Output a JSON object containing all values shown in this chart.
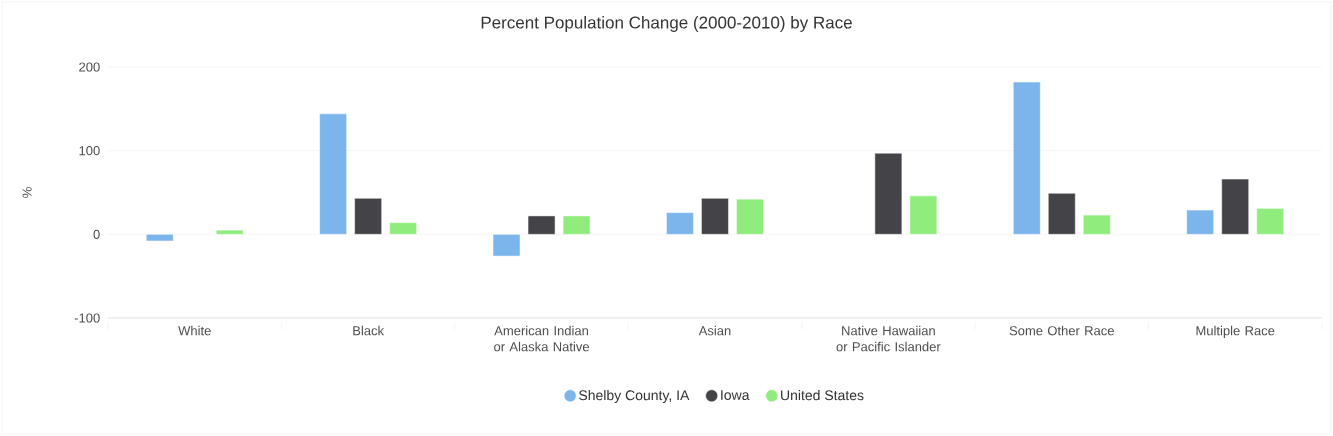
{
  "chart_data": {
    "type": "bar",
    "title": "Percent Population Change (2000-2010) by Race",
    "ylabel": "%",
    "categories": [
      "White",
      "Black",
      "American Indian or Alaska Native",
      "Asian",
      "Native Hawaiian or Pacific Islander",
      "Some Other Race",
      "Multiple Race"
    ],
    "series": [
      {
        "name": "Shelby County, IA",
        "color": "#7cb5ec",
        "values": [
          -8,
          144,
          -26,
          26,
          null,
          182,
          29
        ]
      },
      {
        "name": "Iowa",
        "color": "#434348",
        "values": [
          null,
          43,
          22,
          43,
          97,
          49,
          66
        ]
      },
      {
        "name": "United States",
        "color": "#90ed7d",
        "values": [
          5,
          14,
          22,
          42,
          46,
          23,
          31
        ]
      }
    ],
    "ylim": [
      -100,
      200
    ],
    "yticks": [
      -100,
      0,
      100,
      200
    ],
    "grid": "y",
    "legend": "bottom"
  }
}
